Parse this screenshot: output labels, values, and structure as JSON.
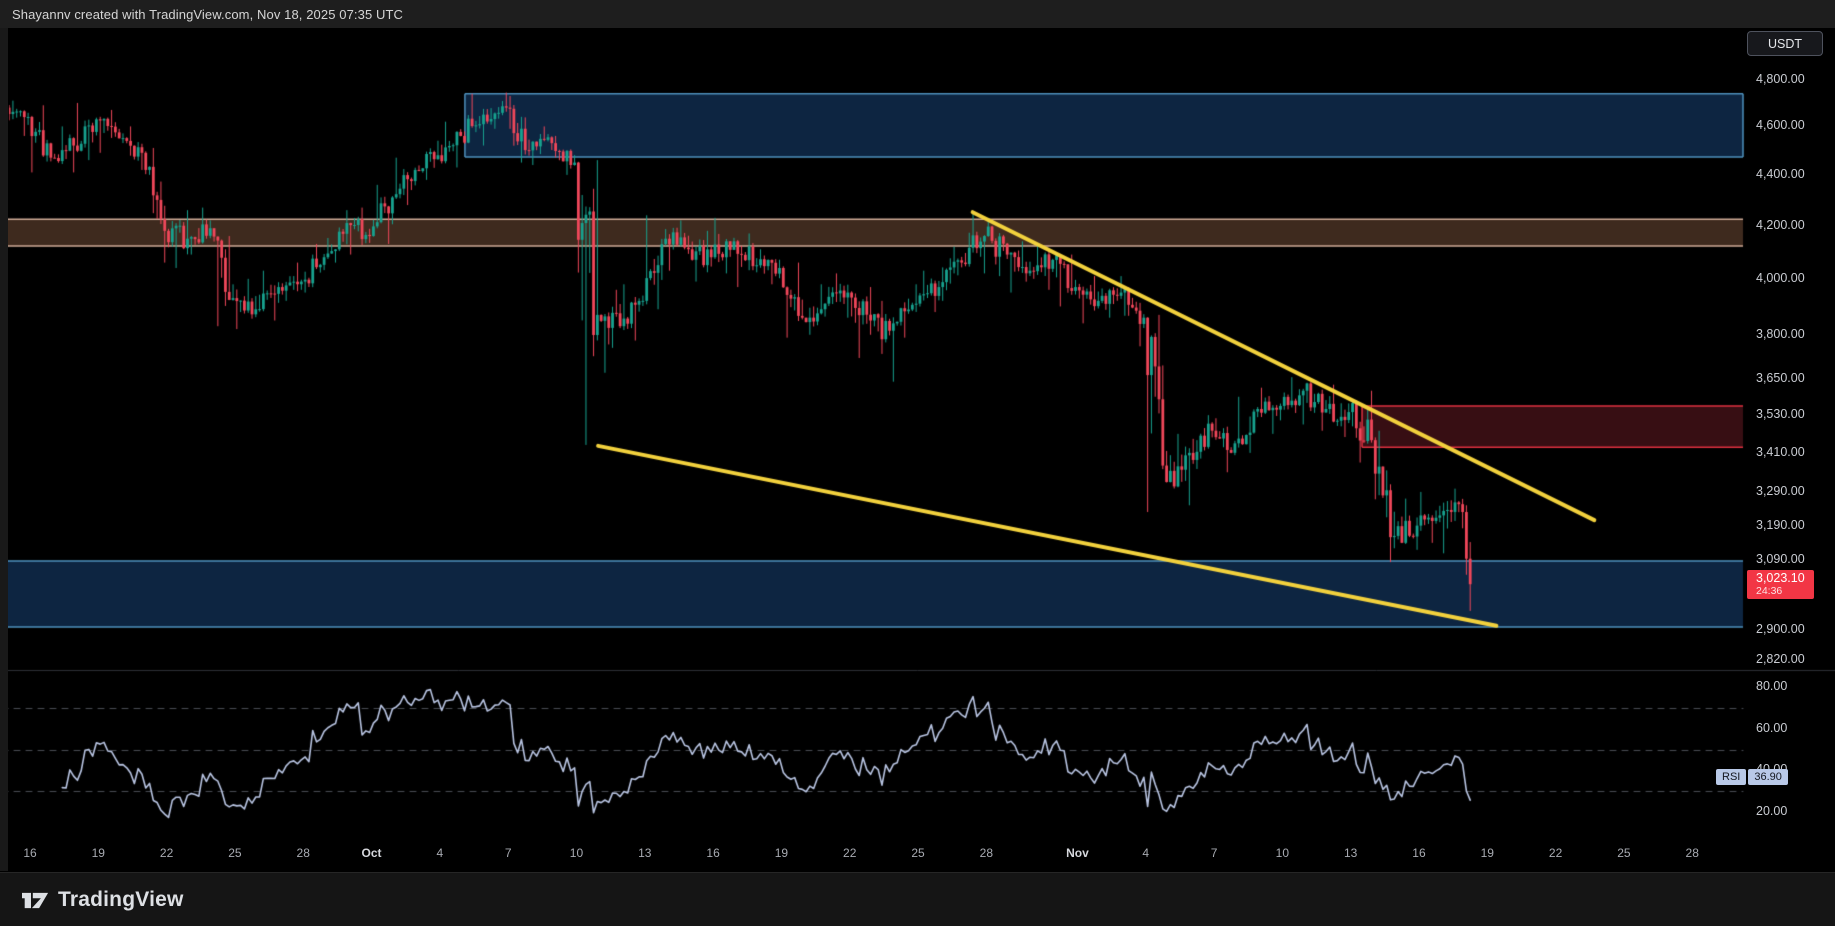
{
  "title_bar": {
    "text": "Shayannv created with TradingView.com, Nov 18, 2025 07:35 UTC"
  },
  "symbol_badge": "USDT",
  "price_tag": {
    "price": "3,023.10",
    "countdown": "24:36"
  },
  "rsi_badge": {
    "label": "RSI",
    "value": "36.90"
  },
  "logo_text": "TradingView",
  "colors": {
    "background": "#000000",
    "candle_up": "#17a28f",
    "candle_down": "#f0475a",
    "trendline": "#f2d13d",
    "rsi_line": "#b9c5e3",
    "rsi_dashed": "#4a4d55",
    "zone_blue_fill": "#0d2541",
    "zone_blue_border": "#4e91bd",
    "zone_brown_fill": "#3e2a1e",
    "zone_brown_border": "#d0ab97",
    "zone_red_fill": "#370e13",
    "zone_red_border": "#e03140",
    "divider": "#2c2f36",
    "tag_red": "#f23645"
  },
  "chart_data": {
    "type": "candlestick+rsi",
    "description": "4-hour candlestick chart with descending wedge trendlines, supply/demand zones and RSI(14) sub-panel",
    "grid": "off",
    "legend_position": "none",
    "price_axis": {
      "side": "right",
      "scale": "log",
      "ticks": [
        {
          "label": "4,800.00",
          "value": 4800
        },
        {
          "label": "4,600.00",
          "value": 4600
        },
        {
          "label": "4,400.00",
          "value": 4400
        },
        {
          "label": "4,200.00",
          "value": 4200
        },
        {
          "label": "4,000.00",
          "value": 4000
        },
        {
          "label": "3,800.00",
          "value": 3800
        },
        {
          "label": "3,650.00",
          "value": 3650
        },
        {
          "label": "3,530.00",
          "value": 3530
        },
        {
          "label": "3,410.00",
          "value": 3410
        },
        {
          "label": "3,290.00",
          "value": 3290
        },
        {
          "label": "3,190.00",
          "value": 3190
        },
        {
          "label": "3,090.00",
          "value": 3090
        },
        {
          "label": "2,900.00",
          "value": 2900
        },
        {
          "label": "2,820.00",
          "value": 2820
        }
      ]
    },
    "time_axis": {
      "start_date": "Sep 16",
      "ticks": [
        {
          "label": "16",
          "day": 0
        },
        {
          "label": "19",
          "day": 3
        },
        {
          "label": "22",
          "day": 6
        },
        {
          "label": "25",
          "day": 9
        },
        {
          "label": "28",
          "day": 12
        },
        {
          "label": "Oct",
          "day": 15
        },
        {
          "label": "4",
          "day": 18
        },
        {
          "label": "7",
          "day": 21
        },
        {
          "label": "10",
          "day": 24
        },
        {
          "label": "13",
          "day": 27
        },
        {
          "label": "16",
          "day": 30
        },
        {
          "label": "19",
          "day": 33
        },
        {
          "label": "22",
          "day": 36
        },
        {
          "label": "25",
          "day": 39
        },
        {
          "label": "28",
          "day": 42
        },
        {
          "label": "Nov",
          "day": 46
        },
        {
          "label": "4",
          "day": 49
        },
        {
          "label": "7",
          "day": 52
        },
        {
          "label": "10",
          "day": 55
        },
        {
          "label": "13",
          "day": 58
        },
        {
          "label": "16",
          "day": 61
        },
        {
          "label": "19",
          "day": 64
        },
        {
          "label": "22",
          "day": 67
        },
        {
          "label": "25",
          "day": 70
        },
        {
          "label": "28",
          "day": 73
        }
      ]
    },
    "current_price": 3023.1,
    "candles_per_day": 6,
    "last_day_candles": 2,
    "open_first": 4680,
    "pre_day": [
      4640,
      4710,
      4560
    ],
    "days_close_high_low": [
      [
        4470,
        4690,
        4410
      ],
      [
        4520,
        4600,
        4410
      ],
      [
        4630,
        4700,
        4460
      ],
      [
        4550,
        4670,
        4490
      ],
      [
        4490,
        4600,
        4420
      ],
      [
        4180,
        4510,
        4060
      ],
      [
        4150,
        4260,
        4040
      ],
      [
        4190,
        4270,
        4090
      ],
      [
        3930,
        4160,
        3830
      ],
      [
        3890,
        4000,
        3820
      ],
      [
        3970,
        4030,
        3850
      ],
      [
        3990,
        4060,
        3920
      ],
      [
        4080,
        4130,
        3950
      ],
      [
        4210,
        4260,
        4060
      ],
      [
        4160,
        4270,
        4090
      ],
      [
        4310,
        4360,
        4130
      ],
      [
        4420,
        4470,
        4280
      ],
      [
        4480,
        4540,
        4380
      ],
      [
        4560,
        4620,
        4430
      ],
      [
        4650,
        4740,
        4520
      ],
      [
        4680,
        4745,
        4590
      ],
      [
        4500,
        4730,
        4450
      ],
      [
        4530,
        4600,
        4440
      ],
      [
        4450,
        4560,
        4400
      ],
      [
        3870,
        4460,
        3435
      ],
      [
        3830,
        3960,
        3670
      ],
      [
        3920,
        3980,
        3780
      ],
      [
        4150,
        4240,
        3890
      ],
      [
        4110,
        4220,
        4030
      ],
      [
        4080,
        4180,
        3990
      ],
      [
        4140,
        4230,
        4020
      ],
      [
        4050,
        4170,
        3970
      ],
      [
        4040,
        4110,
        3980
      ],
      [
        3860,
        4060,
        3790
      ],
      [
        3910,
        3980,
        3800
      ],
      [
        3950,
        4020,
        3860
      ],
      [
        3850,
        3970,
        3720
      ],
      [
        3840,
        3920,
        3640
      ],
      [
        3910,
        3980,
        3790
      ],
      [
        3970,
        4030,
        3880
      ],
      [
        4060,
        4120,
        3920
      ],
      [
        4160,
        4255,
        4020
      ],
      [
        4090,
        4230,
        4010
      ],
      [
        4030,
        4140,
        3950
      ],
      [
        4070,
        4130,
        3960
      ],
      [
        3970,
        4090,
        3900
      ],
      [
        3920,
        4010,
        3840
      ],
      [
        3950,
        4010,
        3860
      ],
      [
        3860,
        3970,
        3760
      ],
      [
        3320,
        3870,
        3230
      ],
      [
        3410,
        3470,
        3250
      ],
      [
        3480,
        3530,
        3360
      ],
      [
        3440,
        3520,
        3350
      ],
      [
        3550,
        3590,
        3410
      ],
      [
        3560,
        3620,
        3470
      ],
      [
        3610,
        3655,
        3500
      ],
      [
        3550,
        3640,
        3480
      ],
      [
        3540,
        3630,
        3460
      ],
      [
        3450,
        3610,
        3380
      ],
      [
        3160,
        3480,
        3085
      ],
      [
        3190,
        3270,
        3120
      ],
      [
        3220,
        3290,
        3140
      ],
      [
        3230,
        3300,
        3110
      ],
      [
        3023.1,
        3250,
        2950
      ]
    ],
    "zones": [
      {
        "name": "resistance-zone",
        "day_from": 19.1,
        "day_to": null,
        "price_top": 4740,
        "price_bottom": 4473,
        "fill": "#0d2541",
        "border": "#4e91bd",
        "edges": [
          "all"
        ]
      },
      {
        "name": "supply-band",
        "day_from": null,
        "day_to": null,
        "price_top": 4225,
        "price_bottom": 4122,
        "fill": "#3e2a1e",
        "border": "#d0ab97",
        "edges": [
          "top",
          "bottom"
        ]
      },
      {
        "name": "breakdown-supply-box",
        "day_from": 58.5,
        "day_to": null,
        "price_top": 3560,
        "price_bottom": 3428,
        "fill": "#370e13",
        "border": "#e03140",
        "edges": [
          "top",
          "bottom",
          "left"
        ]
      },
      {
        "name": "support-zone",
        "day_from": null,
        "day_to": null,
        "price_top": 3088,
        "price_bottom": 2907,
        "fill": "#0d2541",
        "border": "#4e91bd",
        "edges": [
          "top",
          "bottom"
        ]
      }
    ],
    "trendlines": [
      {
        "name": "upper-descending-trendline",
        "day1": 41.4,
        "price1": 4252,
        "day2": 68.7,
        "price2": 3206
      },
      {
        "name": "lower-descending-trendline",
        "day1": 24.95,
        "price1": 3432,
        "day2": 64.4,
        "price2": 2910
      }
    ],
    "rsi": {
      "period": 14,
      "last_value": 36.9,
      "dashed_levels": [
        70,
        50,
        30
      ],
      "ticks": [
        {
          "label": "80.00",
          "value": 80
        },
        {
          "label": "60.00",
          "value": 60
        },
        {
          "label": "40.00",
          "value": 40
        },
        {
          "label": "20.00",
          "value": 20
        }
      ]
    }
  }
}
